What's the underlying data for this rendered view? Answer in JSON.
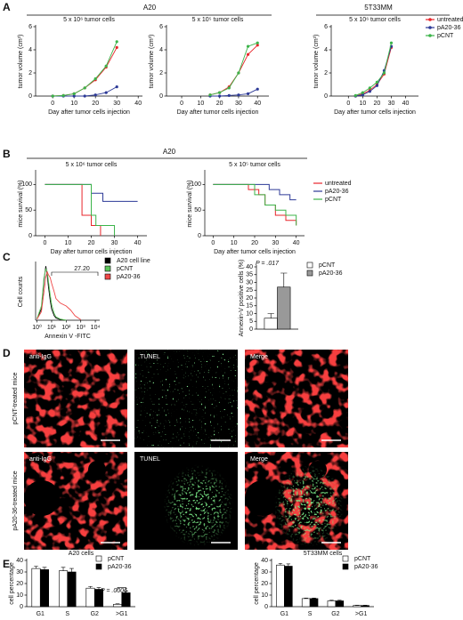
{
  "figure": {
    "panel_labels": [
      "A",
      "B",
      "C",
      "D",
      "E"
    ],
    "headers": [
      "A20",
      "5T33MM",
      "A20"
    ],
    "image_columns": [
      "anti-IgG",
      "TUNEL",
      "Merge"
    ],
    "image_rows": [
      "pCNT-treated mice",
      "pA20-36-treated mice"
    ]
  },
  "chart_data": [
    {
      "type": "line",
      "title": "5 x 10⁶ tumor cells",
      "xlabel": "Day after tumor cells injection",
      "ylabel": "tumor volume (cm³)",
      "markers": true,
      "x": [
        0,
        5,
        10,
        15,
        20,
        25,
        30
      ],
      "xlim": [
        -8,
        42
      ],
      "xticks": [
        0,
        10,
        20,
        30,
        40
      ],
      "ylim": [
        0,
        6
      ],
      "yticks": [
        0,
        2,
        4,
        6
      ],
      "series": [
        {
          "color": "#e8262b",
          "values": [
            0,
            0.05,
            0.2,
            0.7,
            1.4,
            2.5,
            4.2
          ]
        },
        {
          "color": "#2d3a97",
          "values": [
            0,
            0,
            0,
            0,
            0.1,
            0.3,
            0.8
          ]
        },
        {
          "color": "#3cb44a",
          "values": [
            0,
            0.05,
            0.2,
            0.7,
            1.5,
            2.6,
            4.7
          ]
        }
      ]
    },
    {
      "type": "line",
      "title": "5 x 10⁵ tumor cells",
      "xlabel": "Day after tumor cells injection",
      "ylabel": "tumor volume (cm³)",
      "markers": true,
      "x": [
        15,
        20,
        25,
        30,
        35,
        40
      ],
      "xlim": [
        -8,
        46
      ],
      "xticks": [
        0,
        10,
        20,
        30,
        40
      ],
      "ylim": [
        0,
        6
      ],
      "yticks": [
        0,
        2,
        4,
        6
      ],
      "series": [
        {
          "color": "#e8262b",
          "values": [
            0.1,
            0.3,
            0.8,
            2.0,
            3.6,
            4.4
          ]
        },
        {
          "color": "#2d3a97",
          "values": [
            0,
            0,
            0.05,
            0.1,
            0.2,
            0.6
          ]
        },
        {
          "color": "#3cb44a",
          "values": [
            0.1,
            0.3,
            0.7,
            2.0,
            4.3,
            4.6
          ]
        }
      ]
    },
    {
      "type": "line",
      "title": "5 x 10⁶ tumor cells",
      "xlabel": "Day after tumor cells injection",
      "ylabel": "tumor volume (cm³)",
      "markers": true,
      "x": [
        5,
        10,
        15,
        20,
        25,
        30
      ],
      "xlim": [
        -12,
        49
      ],
      "xticks": [
        0,
        10,
        20,
        30,
        40
      ],
      "ylim": [
        0,
        6
      ],
      "yticks": [
        0,
        2,
        4,
        6
      ],
      "series": [
        {
          "name": "untreated",
          "color": "#e8262b",
          "values": [
            0,
            0.2,
            0.5,
            1.0,
            1.9,
            4.2
          ]
        },
        {
          "name": "pA20-36",
          "color": "#2d3a97",
          "values": [
            0,
            0.1,
            0.4,
            0.9,
            2.2,
            4.3
          ]
        },
        {
          "name": "pCNT",
          "color": "#3cb44a",
          "values": [
            0.05,
            0.3,
            0.7,
            1.2,
            2.0,
            4.6
          ]
        }
      ]
    },
    {
      "type": "step",
      "title": "5 x 10⁶ tumor cells",
      "xlabel": "Day after tumor cells injection",
      "ylabel": "mice survival (%)",
      "xlim": [
        -4,
        44
      ],
      "xticks": [
        0,
        10,
        20,
        30,
        40
      ],
      "ylim": [
        0,
        125
      ],
      "yticks": [
        0,
        50,
        100
      ],
      "series": [
        {
          "color": "#e8262b",
          "x": [
            0,
            16,
            20,
            24
          ],
          "values": [
            100,
            40,
            20,
            0
          ]
        },
        {
          "color": "#2d3a97",
          "x": [
            0,
            20,
            25,
            40
          ],
          "values": [
            100,
            83,
            67,
            67
          ]
        },
        {
          "color": "#3cb44a",
          "x": [
            0,
            20,
            22,
            30
          ],
          "values": [
            100,
            40,
            20,
            0
          ]
        }
      ]
    },
    {
      "type": "step",
      "title": "5 x 10⁵ tumor cells",
      "xlabel": "Day after tumor cells injection",
      "ylabel": "mice survival (%)",
      "xlim": [
        -4,
        44
      ],
      "xticks": [
        0,
        10,
        20,
        30,
        40
      ],
      "ylim": [
        0,
        125
      ],
      "yticks": [
        0,
        50,
        100
      ],
      "series": [
        {
          "name": "untreated",
          "color": "#e8262b",
          "x": [
            0,
            17,
            22,
            25,
            30,
            35,
            40
          ],
          "values": [
            100,
            90,
            80,
            60,
            40,
            30,
            20
          ]
        },
        {
          "name": "pA20-36",
          "color": "#2d3a97",
          "x": [
            0,
            27,
            32,
            37,
            40
          ],
          "values": [
            100,
            90,
            80,
            70,
            70
          ]
        },
        {
          "name": "pCNT",
          "color": "#3cb44a",
          "x": [
            0,
            20,
            25,
            30,
            35,
            40
          ],
          "values": [
            100,
            80,
            60,
            50,
            40,
            20
          ]
        }
      ]
    },
    {
      "type": "line",
      "xlabel": "Annexin V -FITC",
      "ylabel": "Cell counts",
      "markers": false,
      "xlog": true,
      "annotation": "27.20",
      "xlim": [
        0.8,
        20000
      ],
      "xticks": [
        {
          "value": 1,
          "label": "10⁰"
        },
        {
          "value": 10,
          "label": "10¹"
        },
        {
          "value": 100,
          "label": "10²"
        },
        {
          "value": 1000,
          "label": "10³"
        },
        {
          "value": 10000,
          "label": "10⁴"
        }
      ],
      "ylim": [
        0,
        100
      ],
      "yticks": [],
      "series": [
        {
          "name": "A20 cell line",
          "color": "#000000",
          "x": [
            1,
            2,
            3,
            4,
            5,
            6,
            8,
            10,
            15,
            20,
            40,
            100
          ],
          "values": [
            2,
            20,
            70,
            95,
            80,
            60,
            35,
            20,
            8,
            4,
            1,
            0
          ]
        },
        {
          "name": "pCNT",
          "color": "#5cc45a",
          "x": [
            1,
            2,
            3,
            4,
            5,
            6,
            8,
            10,
            15,
            20,
            40,
            100
          ],
          "values": [
            3,
            25,
            75,
            90,
            85,
            70,
            45,
            28,
            12,
            6,
            2,
            0
          ]
        },
        {
          "name": "pA20-36",
          "color": "#f04848",
          "x": [
            1,
            2,
            3,
            4,
            5,
            6,
            8,
            10,
            15,
            20,
            40,
            100,
            200,
            400,
            1000
          ],
          "values": [
            2,
            15,
            50,
            75,
            85,
            80,
            75,
            65,
            50,
            38,
            30,
            25,
            18,
            8,
            1
          ]
        }
      ]
    },
    {
      "type": "bar",
      "ylabel": "Annexin-V positive cells (%)",
      "annotation": "P = .017",
      "categories": [
        null
      ],
      "ylim": [
        0,
        40
      ],
      "yticks": [
        0,
        5,
        10,
        15,
        20,
        25,
        30,
        35,
        40
      ],
      "series": [
        {
          "name": "pCNT",
          "color": "#ffffff",
          "values": [
            7
          ],
          "errors": [
            3
          ]
        },
        {
          "name": "pA20-36",
          "color": "#999999",
          "values": [
            27
          ],
          "errors": [
            9
          ]
        }
      ]
    },
    {
      "type": "bar",
      "title": "A20 cells",
      "ylabel": "cell percentage",
      "annotation": "P = .0006",
      "categories": [
        "G1",
        "S",
        "G2",
        ">G1"
      ],
      "ylim": [
        0,
        40
      ],
      "yticks": [
        0,
        10,
        20,
        30,
        40
      ],
      "series": [
        {
          "name": "pCNT",
          "color": "#ffffff",
          "values": [
            33,
            31,
            16,
            2
          ],
          "errors": [
            2,
            3,
            1.5,
            0.5
          ]
        },
        {
          "name": "pA20-36",
          "color": "#000000",
          "values": [
            32,
            30,
            15,
            12
          ],
          "errors": [
            2,
            3,
            1.5,
            1.5
          ]
        }
      ]
    },
    {
      "type": "bar",
      "title": "5T33MM cells",
      "ylabel": "cell percentage",
      "categories": [
        "G1",
        "S",
        "G2",
        ">G1"
      ],
      "ylim": [
        0,
        40
      ],
      "yticks": [
        0,
        10,
        20,
        30,
        40
      ],
      "series": [
        {
          "name": "pCNT",
          "color": "#ffffff",
          "values": [
            36,
            7,
            5,
            1
          ],
          "errors": [
            1.5,
            0.5,
            0.5,
            0.2
          ]
        },
        {
          "name": "pA20-36",
          "color": "#000000",
          "values": [
            35,
            7,
            5,
            1
          ],
          "errors": [
            2,
            0.5,
            0.5,
            0.2
          ]
        }
      ]
    }
  ]
}
